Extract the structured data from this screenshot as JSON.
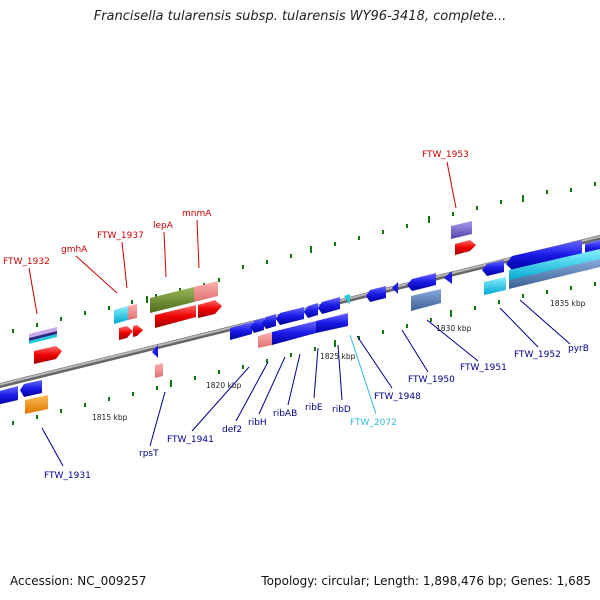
{
  "title": "Francisella tularensis subsp. tularensis WY96-3418, complete...",
  "footer": {
    "accession": "Accession: NC_009257",
    "summary": "Topology: circular; Length: 1,898,476 bp; Genes: 1,685"
  },
  "ticks": {
    "t1815": "1815 kbp",
    "t1820": "1820 kbp",
    "t1825": "1825 kbp",
    "t1830": "1830 kbp",
    "t1835": "1835 kbp"
  },
  "genes": {
    "FTW_1932": "FTW_1932",
    "gmhA": "gmhA",
    "FTW_1937": "FTW_1937",
    "lepA": "lepA",
    "mnmA": "mnmA",
    "FTW_1953": "FTW_1953",
    "FTW_1931": "FTW_1931",
    "rpsT": "rpsT",
    "FTW_1941": "FTW_1941",
    "def2": "def2",
    "ribH": "ribH",
    "ribAB": "ribAB",
    "ribE": "ribE",
    "ribD": "ribD",
    "FTW_2072": "FTW_2072",
    "FTW_1948": "FTW_1948",
    "FTW_1950": "FTW_1950",
    "FTW_1951": "FTW_1951",
    "FTW_1952": "FTW_1952",
    "pyrB": "pyrB"
  },
  "colors": {
    "background": "#ffffff",
    "backbone": "#888888",
    "label_red": "#cc0000",
    "label_blue": "#00008b",
    "label_cyan": "#33bbdd",
    "gene_blue": "#1a1ae6",
    "gene_red": "#ee0000",
    "gene_pink": "#ee8888",
    "gene_green": "#6b8e23",
    "gene_cyan": "#22ccdd",
    "gene_purple": "#7a66cc",
    "gene_orange": "#ee8800",
    "gene_steel": "#4a7ab5",
    "tick_green": "#117711"
  }
}
